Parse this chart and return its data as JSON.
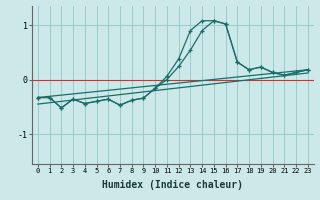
{
  "xlabel": "Humidex (Indice chaleur)",
  "bg_color": "#cce8e8",
  "grid_color": "#99cccc",
  "line_color": "#1a6e6a",
  "red_line_color": "#cc3333",
  "xlim": [
    -0.5,
    23.5
  ],
  "ylim": [
    -1.55,
    1.35
  ],
  "yticks": [
    -1,
    0,
    1
  ],
  "xticks": [
    0,
    1,
    2,
    3,
    4,
    5,
    6,
    7,
    8,
    9,
    10,
    11,
    12,
    13,
    14,
    15,
    16,
    17,
    18,
    19,
    20,
    21,
    22,
    23
  ],
  "main_line": {
    "x": [
      0,
      1,
      2,
      3,
      4,
      5,
      6,
      7,
      8,
      9,
      10,
      11,
      12,
      13,
      14,
      15,
      16,
      17,
      18,
      19,
      20,
      21,
      22,
      23
    ],
    "y": [
      -0.33,
      -0.33,
      -0.52,
      -0.36,
      -0.44,
      -0.4,
      -0.36,
      -0.47,
      -0.38,
      -0.34,
      -0.16,
      0.06,
      0.38,
      0.9,
      1.08,
      1.08,
      1.02,
      0.32,
      0.18,
      0.23,
      0.13,
      0.08,
      0.13,
      0.18
    ]
  },
  "second_line": {
    "x": [
      0,
      1,
      2,
      3,
      4,
      5,
      6,
      7,
      8,
      9,
      10,
      11,
      12,
      13,
      14,
      15,
      16,
      17,
      18,
      19,
      20,
      21,
      22,
      23
    ],
    "y": [
      -0.33,
      -0.33,
      -0.52,
      -0.36,
      -0.44,
      -0.4,
      -0.36,
      -0.47,
      -0.38,
      -0.34,
      -0.16,
      0.0,
      0.24,
      0.54,
      0.9,
      1.08,
      1.02,
      0.32,
      0.18,
      0.23,
      0.13,
      0.08,
      0.13,
      0.18
    ]
  },
  "trend1": {
    "x": [
      0,
      23
    ],
    "y": [
      -0.33,
      0.18
    ]
  },
  "trend2": {
    "x": [
      0,
      23
    ],
    "y": [
      -0.45,
      0.12
    ]
  }
}
